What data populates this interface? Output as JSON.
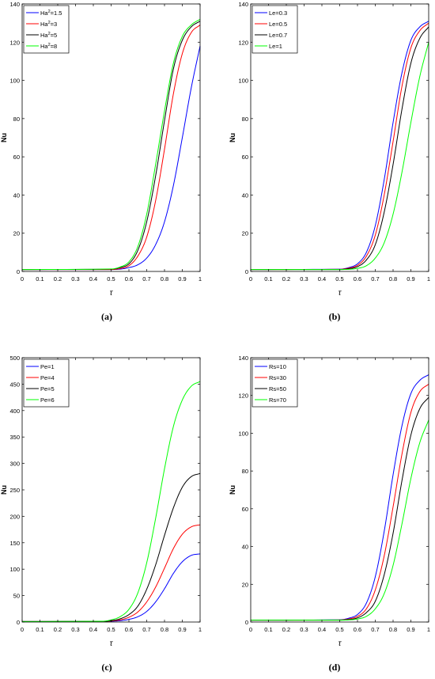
{
  "panels": [
    {
      "caption": "(a)",
      "chart_data": {
        "type": "line",
        "xlabel": "τ",
        "ylabel": "Nu",
        "xlim": [
          0,
          1
        ],
        "ylim": [
          0,
          140
        ],
        "xticks": [
          0,
          0.1,
          0.2,
          0.3,
          0.4,
          0.5,
          0.6,
          0.7,
          0.8,
          0.9,
          1
        ],
        "xtick_labels": [
          "0",
          "0.1",
          "0.2",
          "0.3",
          "0.4",
          "0.5",
          "0.6",
          "0.7",
          "0.8",
          "0.9",
          "1"
        ],
        "yticks": [
          0,
          20,
          40,
          60,
          80,
          100,
          120,
          140
        ],
        "ytick_labels": [
          "0",
          "20",
          "40",
          "60",
          "80",
          "100",
          "120",
          "140"
        ],
        "grid": false,
        "legend_position": "top-left",
        "x": [
          0,
          0.5,
          0.55,
          0.6,
          0.65,
          0.7,
          0.75,
          0.8,
          0.85,
          0.9,
          0.95,
          1
        ],
        "series": [
          {
            "name": "Ha²=1.5",
            "legend_main": "Ha",
            "legend_sup": "2",
            "legend_rest": "=1.5",
            "color": "#0000ff",
            "values": [
              1,
              1,
              1.2,
              2,
              3.5,
              7,
              14,
              26,
              45,
              70,
              96,
              118
            ]
          },
          {
            "name": "Ha²=3",
            "legend_main": "Ha",
            "legend_sup": "2",
            "legend_rest": "=3",
            "color": "#ff0000",
            "values": [
              1,
              1,
              1.5,
              3,
              8,
              18,
              37,
              64,
              93,
              114,
              125,
              129
            ]
          },
          {
            "name": "Ha²=5",
            "legend_main": "Ha",
            "legend_sup": "2",
            "legend_rest": "=5",
            "color": "#000000",
            "values": [
              1,
              1.2,
              2,
              4,
              11,
              26,
              50,
              79,
              106,
              121,
              128,
              131
            ]
          },
          {
            "name": "Ha²=8",
            "legend_main": "Ha",
            "legend_sup": "2",
            "legend_rest": "=8",
            "color": "#00ff00",
            "values": [
              1,
              1.3,
              2.3,
              5,
              13,
              30,
              56,
              84,
              109,
              123,
              129,
              132
            ]
          }
        ]
      }
    },
    {
      "caption": "(b)",
      "chart_data": {
        "type": "line",
        "xlabel": "τ",
        "ylabel": "Nu",
        "xlim": [
          0,
          1
        ],
        "ylim": [
          0,
          140
        ],
        "xticks": [
          0,
          0.1,
          0.2,
          0.3,
          0.4,
          0.5,
          0.6,
          0.7,
          0.8,
          0.9,
          1
        ],
        "xtick_labels": [
          "0",
          "0.1",
          "0.2",
          "0.3",
          "0.4",
          "0.5",
          "0.6",
          "0.7",
          "0.8",
          "0.9",
          "1"
        ],
        "yticks": [
          0,
          20,
          40,
          60,
          80,
          100,
          120,
          140
        ],
        "ytick_labels": [
          "0",
          "20",
          "40",
          "60",
          "80",
          "100",
          "120",
          "140"
        ],
        "grid": false,
        "legend_position": "top-left",
        "x": [
          0,
          0.5,
          0.55,
          0.6,
          0.65,
          0.7,
          0.75,
          0.8,
          0.85,
          0.9,
          0.95,
          1
        ],
        "series": [
          {
            "name": "Le=0.3",
            "legend_main": "Le=0.3",
            "legend_sup": "",
            "legend_rest": "",
            "color": "#0000ff",
            "values": [
              1,
              1.2,
              2,
              4,
              10,
              24,
              48,
              78,
              104,
              121,
              128,
              131
            ]
          },
          {
            "name": "Le=0.5",
            "legend_main": "Le=0.5",
            "legend_sup": "",
            "legend_rest": "",
            "color": "#ff0000",
            "values": [
              1,
              1.1,
              1.7,
              3.2,
              8,
              19,
              40,
              68,
              97,
              117,
              126,
              130
            ]
          },
          {
            "name": "Le=0.7",
            "legend_main": "Le=0.7",
            "legend_sup": "",
            "legend_rest": "",
            "color": "#000000",
            "values": [
              1,
              1,
              1.4,
              2.5,
              6,
              14,
              31,
              56,
              85,
              109,
              122,
              128
            ]
          },
          {
            "name": "Le=1",
            "legend_main": "Le=1",
            "legend_sup": "",
            "legend_rest": "",
            "color": "#00ff00",
            "values": [
              1,
              1,
              1.1,
              1.6,
              3,
              7,
              15,
              30,
              52,
              78,
              102,
              120
            ]
          }
        ]
      }
    },
    {
      "caption": "(c)",
      "chart_data": {
        "type": "line",
        "xlabel": "τ",
        "ylabel": "Nu",
        "xlim": [
          0,
          1
        ],
        "ylim": [
          0,
          500
        ],
        "xticks": [
          0,
          0.1,
          0.2,
          0.3,
          0.4,
          0.5,
          0.6,
          0.7,
          0.8,
          0.9,
          1
        ],
        "xtick_labels": [
          "0",
          "0.1",
          "0.2",
          "0.3",
          "0.4",
          "0.5",
          "0.6",
          "0.7",
          "0.8",
          "0.9",
          "1"
        ],
        "yticks": [
          0,
          50,
          100,
          150,
          200,
          250,
          300,
          350,
          400,
          450,
          500
        ],
        "ytick_labels": [
          "0",
          "50",
          "100",
          "150",
          "200",
          "250",
          "300",
          "350",
          "400",
          "450",
          "500"
        ],
        "grid": false,
        "legend_position": "top-left",
        "x": [
          0,
          0.45,
          0.5,
          0.55,
          0.6,
          0.65,
          0.7,
          0.75,
          0.8,
          0.85,
          0.9,
          0.95,
          1
        ],
        "series": [
          {
            "name": "Pe=1",
            "legend_main": "Pe=1",
            "legend_sup": "",
            "legend_rest": "",
            "color": "#0000ff",
            "values": [
              1,
              1,
              1.5,
              2.5,
              5,
              10,
              20,
              38,
              63,
              92,
              114,
              126,
              129
            ]
          },
          {
            "name": "Pe=4",
            "legend_main": "Pe=4",
            "legend_sup": "",
            "legend_rest": "",
            "color": "#ff0000",
            "values": [
              1,
              1,
              2,
              4,
              9,
              19,
              38,
              66,
              102,
              139,
              166,
              180,
              184
            ]
          },
          {
            "name": "Pe=5",
            "legend_main": "Pe=5",
            "legend_sup": "",
            "legend_rest": "",
            "color": "#000000",
            "values": [
              1,
              1.2,
              2.5,
              6,
              14,
              30,
              62,
              108,
              164,
              216,
              255,
              275,
              281
            ]
          },
          {
            "name": "Pe=6",
            "legend_main": "Pe=6",
            "legend_sup": "",
            "legend_rest": "",
            "color": "#00ff00",
            "values": [
              1,
              1.5,
              4,
              10,
              24,
              55,
              112,
              196,
              290,
              370,
              420,
              446,
              455
            ]
          }
        ]
      }
    },
    {
      "caption": "(d)",
      "chart_data": {
        "type": "line",
        "xlabel": "τ",
        "ylabel": "Nu",
        "xlim": [
          0,
          1
        ],
        "ylim": [
          0,
          140
        ],
        "xticks": [
          0,
          0.1,
          0.2,
          0.3,
          0.4,
          0.5,
          0.6,
          0.7,
          0.8,
          0.9,
          1
        ],
        "xtick_labels": [
          "0",
          "0.1",
          "0.2",
          "0.3",
          "0.4",
          "0.5",
          "0.6",
          "0.7",
          "0.8",
          "0.9",
          "1"
        ],
        "yticks": [
          0,
          20,
          40,
          60,
          80,
          100,
          120,
          140
        ],
        "ytick_labels": [
          "0",
          "20",
          "40",
          "60",
          "80",
          "100",
          "120",
          "140"
        ],
        "grid": false,
        "legend_position": "top-left",
        "x": [
          0,
          0.5,
          0.55,
          0.6,
          0.65,
          0.7,
          0.75,
          0.8,
          0.85,
          0.9,
          0.95,
          1
        ],
        "series": [
          {
            "name": "Rs=10",
            "legend_main": "Rs=10",
            "legend_sup": "",
            "legend_rest": "",
            "color": "#0000ff",
            "values": [
              1,
              1.2,
              2,
              4,
              10,
              24,
              48,
              78,
              104,
              121,
              128,
              131
            ]
          },
          {
            "name": "Rs=30",
            "legend_main": "Rs=30",
            "legend_sup": "",
            "legend_rest": "",
            "color": "#ff0000",
            "values": [
              1,
              1.1,
              1.6,
              3,
              7,
              17,
              35,
              61,
              89,
              111,
              122,
              126
            ]
          },
          {
            "name": "Rs=50",
            "legend_main": "Rs=50",
            "legend_sup": "",
            "legend_rest": "",
            "color": "#000000",
            "values": [
              1,
              1,
              1.3,
              2.2,
              5,
              11,
              25,
              47,
              75,
              99,
              113,
              119
            ]
          },
          {
            "name": "Rs=70",
            "legend_main": "Rs=70",
            "legend_sup": "",
            "legend_rest": "",
            "color": "#00ff00",
            "values": [
              1,
              1,
              1.1,
              1.6,
              3,
              7,
              15,
              30,
              52,
              76,
              95,
              107
            ]
          }
        ]
      }
    }
  ]
}
